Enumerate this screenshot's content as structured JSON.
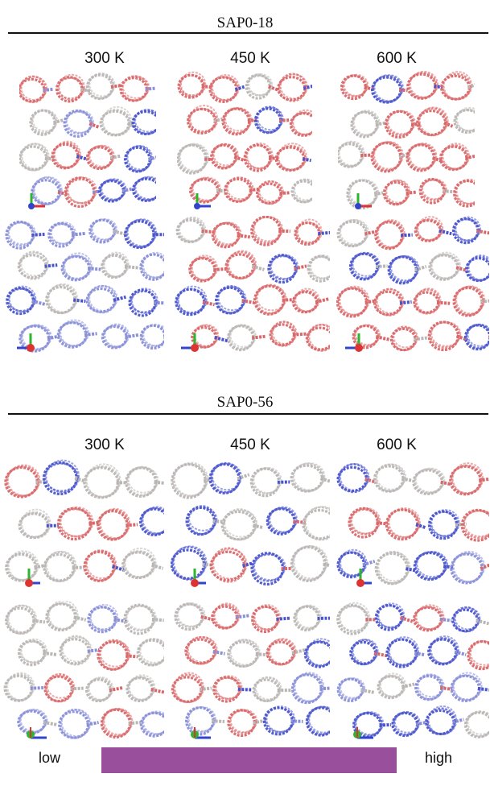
{
  "sections": [
    {
      "title": "SAP0-18",
      "temperatures": [
        "300  K",
        "450  K",
        "600  K"
      ]
    },
    {
      "title": "SAP0-56",
      "temperatures": [
        "300  K",
        "450  K",
        "600  K"
      ]
    }
  ],
  "legend": {
    "low_label": "low",
    "high_label": "high",
    "bar_color": "#9a4f9d"
  },
  "colors": {
    "blue": "#4a55cc",
    "red": "#d9686a",
    "grey": "#b9b6b4",
    "pale_blue": "#8a90d8"
  },
  "icons": [
    "orientation-axes-icon"
  ]
}
